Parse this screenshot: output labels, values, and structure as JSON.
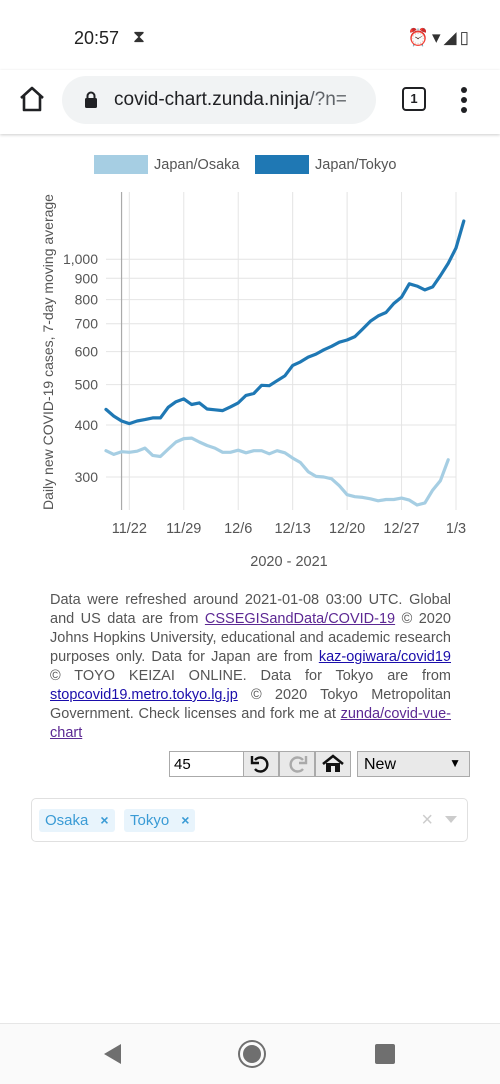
{
  "status": {
    "time": "20:57",
    "hourglass_icon": "⧗",
    "icons": "⏰▾◢▯"
  },
  "browser": {
    "url_main": "covid-chart.zunda.ninja",
    "url_rest": "/?n=",
    "tab_count": "1"
  },
  "chart_data": {
    "type": "line",
    "ylabel": "Daily new COVID-19 cases, 7-day moving average",
    "xlabel": "2020 - 2021",
    "yscale": "log",
    "ylim": [
      250,
      1450
    ],
    "yticks": [
      300,
      400,
      500,
      600,
      700,
      800,
      900,
      1000
    ],
    "ytick_labels": [
      "300",
      "400",
      "500",
      "600",
      "700",
      "800",
      "900",
      "1,000"
    ],
    "x_start": "2020-11-19",
    "x_end": "2021-01-03",
    "xticks": [
      "2020-11-22",
      "2020-11-29",
      "2020-12-06",
      "2020-12-13",
      "2020-12-20",
      "2020-12-27",
      "2021-01-03"
    ],
    "xtick_labels": [
      "11/22",
      "11/29",
      "12/6",
      "12/13",
      "12/20",
      "12/27",
      "1/3"
    ],
    "marker_date": "2020-11-21",
    "legend_position": "top",
    "series": [
      {
        "name": "Japan/Osaka",
        "color": "#a6cee3",
        "values": [
          347,
          340,
          345,
          344,
          346,
          352,
          338,
          336,
          350,
          364,
          371,
          372,
          364,
          357,
          352,
          344,
          344,
          348,
          343,
          347,
          347,
          341,
          347,
          343,
          333,
          325,
          309,
          301,
          300,
          297,
          286,
          272,
          269,
          268,
          266,
          263,
          265,
          265,
          267,
          264,
          257,
          260,
          279,
          294,
          330
        ]
      },
      {
        "name": "Japan/Tokyo",
        "color": "#1f78b4",
        "values": [
          436,
          420,
          409,
          403,
          409,
          412,
          416,
          416,
          441,
          455,
          462,
          448,
          452,
          437,
          435,
          433,
          442,
          452,
          471,
          476,
          498,
          497,
          511,
          525,
          556,
          567,
          582,
          592,
          606,
          618,
          632,
          640,
          652,
          680,
          710,
          731,
          745,
          783,
          811,
          873,
          862,
          844,
          858,
          913,
          977,
          1064,
          1235
        ]
      }
    ]
  },
  "attribution": {
    "t1": "Data were refreshed around 2021-01-08 03:00 UTC. Global and US data are from ",
    "l1": "CSSEGISandData/COVID-19",
    "t2": " © 2020 Johns Hopkins University, educational and academic research purposes only. Data for Japan are from ",
    "l2": "kaz-ogiwara/covid19",
    "t3": " © TOYO KEIZAI ONLINE. Data for Tokyo are from ",
    "l3": "stopcovid19.metro.tokyo.lg.jp",
    "t4": " © 2020 Tokyo Metropolitan Government. Check licenses and fork me at ",
    "l4": "zunda/covid-vue-chart"
  },
  "controls": {
    "days_value": "45",
    "mode_selected": "New",
    "caret": "▼"
  },
  "regions": {
    "tags": [
      "Osaka",
      "Tokyo"
    ],
    "remove_glyph": "×",
    "clear_glyph": "×"
  }
}
